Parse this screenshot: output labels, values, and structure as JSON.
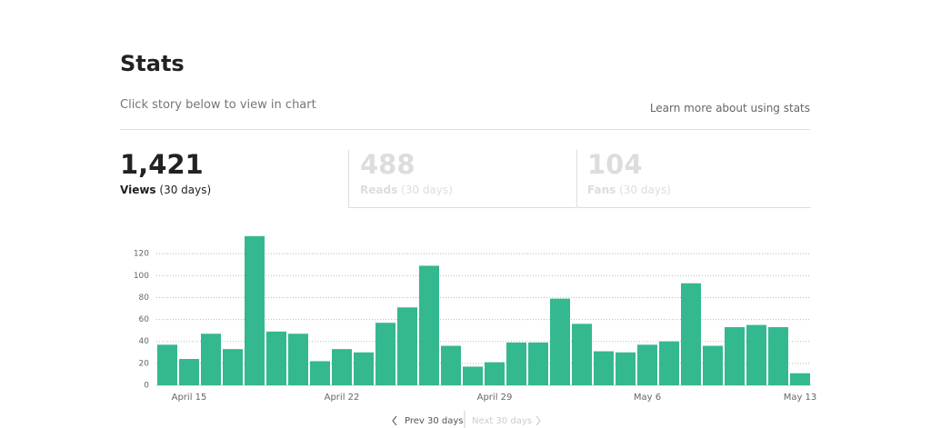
{
  "header": {
    "title": "Stats",
    "subtitle": "Click story below to view in chart",
    "link": "Learn more about using stats"
  },
  "tabs": [
    {
      "value": "1,421",
      "label": "Views",
      "period": "(30 days)"
    },
    {
      "value": "488",
      "label": "Reads",
      "period": "(30 days)"
    },
    {
      "value": "104",
      "label": "Fans",
      "period": "(30 days)"
    }
  ],
  "chart_data": {
    "type": "bar",
    "color": "#34b88f",
    "categories": [
      null,
      "April 15",
      null,
      null,
      null,
      null,
      null,
      null,
      "April 22",
      null,
      null,
      null,
      null,
      null,
      null,
      "April 29",
      null,
      null,
      null,
      null,
      null,
      null,
      "May 6",
      null,
      null,
      null,
      null,
      null,
      null,
      "May 13"
    ],
    "values": [
      37,
      24,
      47,
      33,
      136,
      49,
      47,
      22,
      33,
      30,
      57,
      71,
      109,
      36,
      17,
      21,
      39,
      39,
      79,
      56,
      31,
      30,
      37,
      40,
      93,
      36,
      53,
      55,
      53,
      11
    ],
    "ylim": [
      0,
      140
    ],
    "yticks": [
      0,
      20,
      40,
      60,
      80,
      100,
      120
    ],
    "grid": true
  },
  "pagination": {
    "prev": "Prev 30 days",
    "next": "Next 30 days"
  }
}
